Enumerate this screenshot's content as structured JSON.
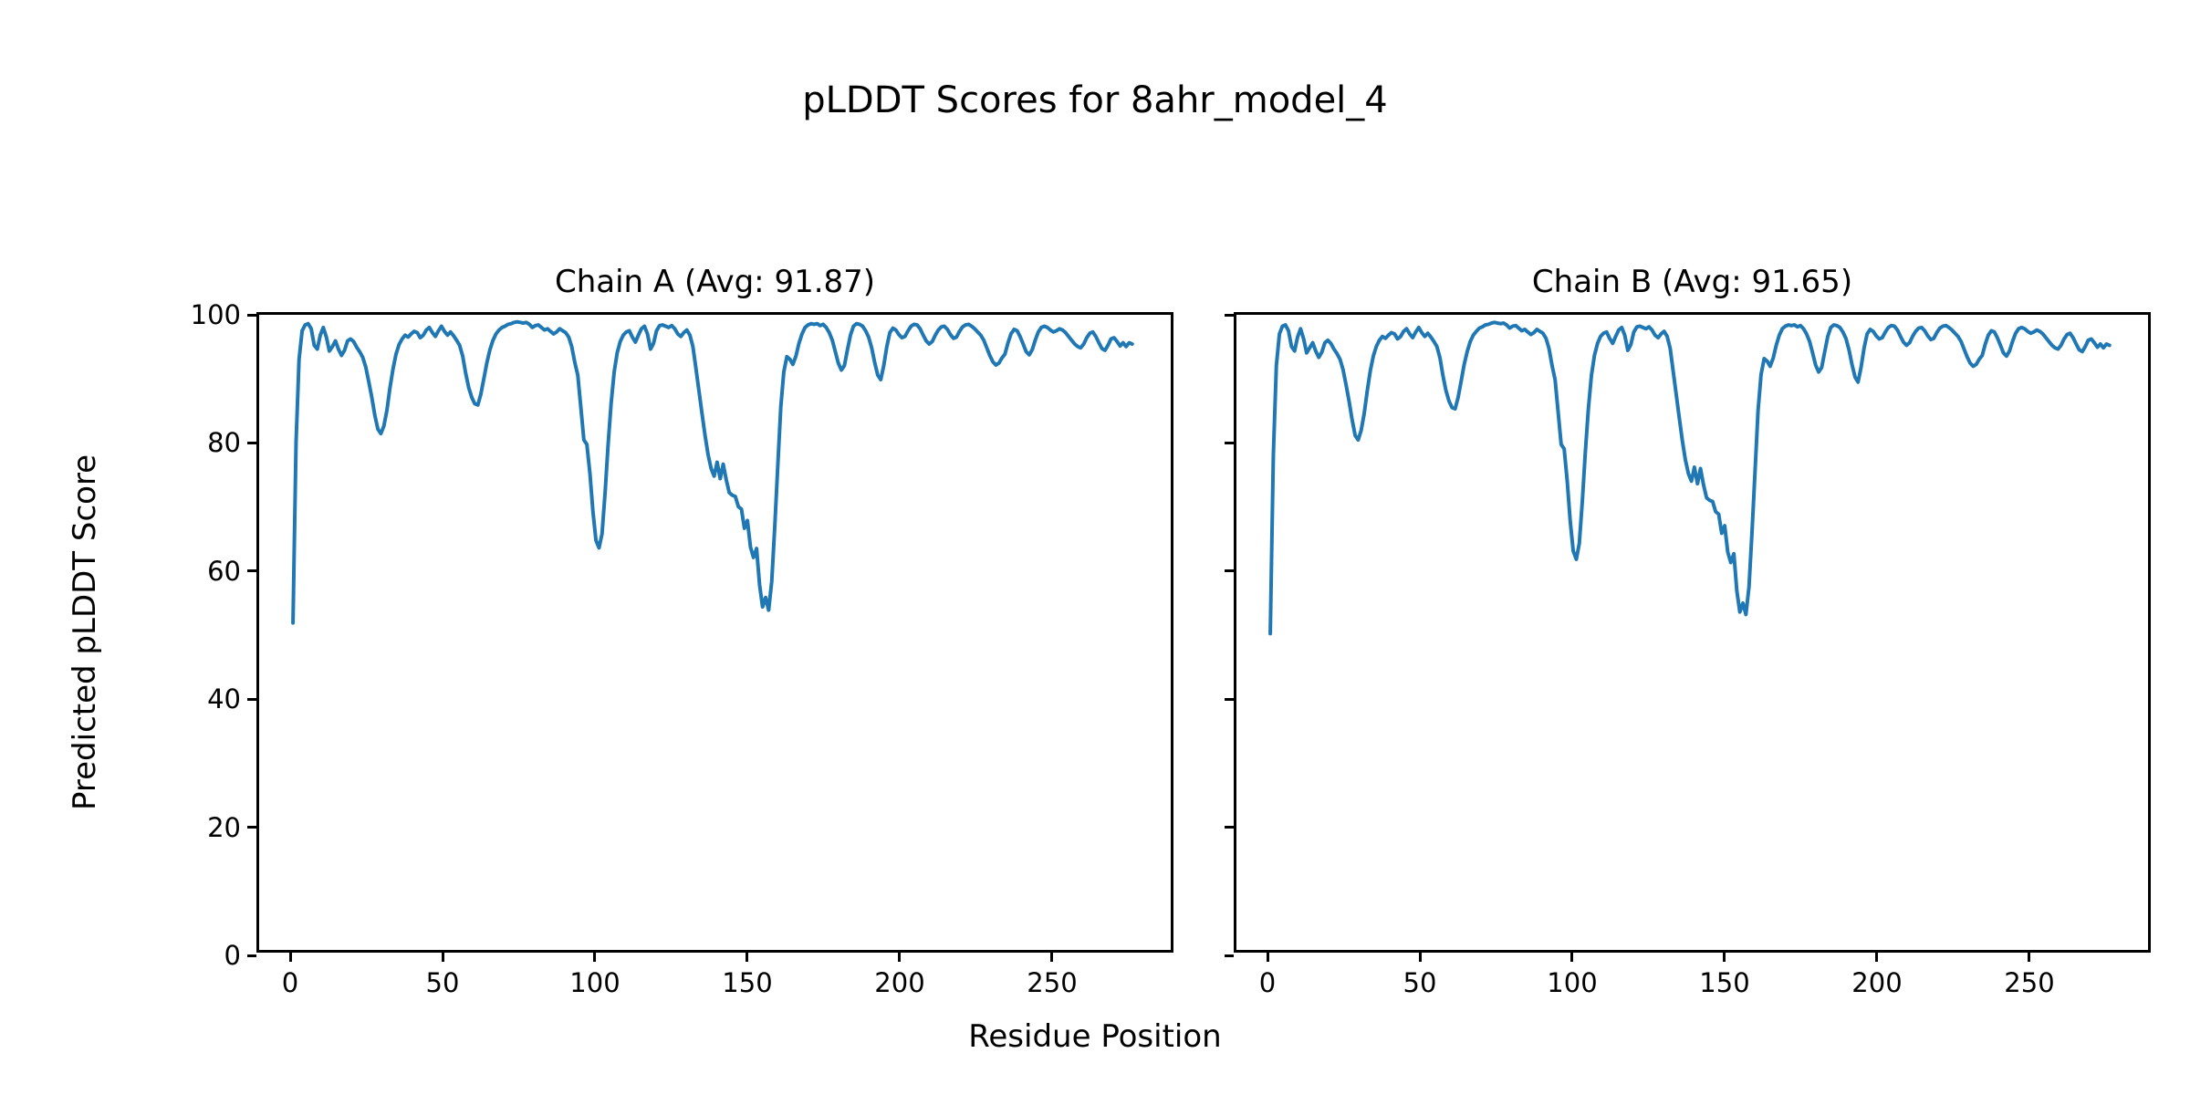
{
  "figure": {
    "suptitle": "pLDDT Scores for 8ahr_model_4",
    "xlabel": "Residue Position",
    "ylabel": "Predicted pLDDT Score"
  },
  "chart_data": {
    "type": "line",
    "title": "pLDDT Scores for 8ahr_model_4",
    "xlabel": "Residue Position",
    "ylabel": "Predicted pLDDT Score",
    "line_color": "#1f77b4",
    "background_color": "#ffffff",
    "grid": false,
    "legend": "none",
    "x_start": 1,
    "xlim": [
      -10.18,
      290.72
    ],
    "ylim": [
      0,
      100
    ],
    "x_ticks": [
      0,
      50,
      100,
      150,
      200,
      250
    ],
    "y_ticks": [
      0,
      20,
      40,
      60,
      80,
      100
    ],
    "subplots": [
      {
        "title": "Chain A (Avg: 91.87)",
        "chain": "A",
        "avg": 91.87,
        "values": [
          51.5,
          80.0,
          93.0,
          97.5,
          98.4,
          98.6,
          97.8,
          95.2,
          94.6,
          96.8,
          98.0,
          96.5,
          94.3,
          95.0,
          95.9,
          94.6,
          93.6,
          94.4,
          95.9,
          96.2,
          95.8,
          94.9,
          94.2,
          93.3,
          91.8,
          89.5,
          87.0,
          84.2,
          82.0,
          81.3,
          82.5,
          85.0,
          88.5,
          91.5,
          93.8,
          95.3,
          96.2,
          96.8,
          96.5,
          97.0,
          97.4,
          97.2,
          96.4,
          96.8,
          97.6,
          98.0,
          97.2,
          96.6,
          97.5,
          98.2,
          97.4,
          96.8,
          97.3,
          96.7,
          96.0,
          95.2,
          93.5,
          90.8,
          88.5,
          87.0,
          86.0,
          85.8,
          87.5,
          90.0,
          92.5,
          94.5,
          96.0,
          97.0,
          97.6,
          98.0,
          98.2,
          98.5,
          98.6,
          98.8,
          98.9,
          98.8,
          98.7,
          98.8,
          98.5,
          98.0,
          98.3,
          98.4,
          98.0,
          97.6,
          97.8,
          97.4,
          97.0,
          97.3,
          97.8,
          97.5,
          97.2,
          96.5,
          95.0,
          92.5,
          90.5,
          85.5,
          80.3,
          79.6,
          75.0,
          69.0,
          64.5,
          63.3,
          65.5,
          72.0,
          79.5,
          86.0,
          91.0,
          94.0,
          95.8,
          96.8,
          97.3,
          97.5,
          96.5,
          95.7,
          96.8,
          97.8,
          98.2,
          97.0,
          94.6,
          95.5,
          97.5,
          98.3,
          98.4,
          98.2,
          98.0,
          98.3,
          97.8,
          97.0,
          96.6,
          97.2,
          97.6,
          96.8,
          95.0,
          91.5,
          88.0,
          84.5,
          81.0,
          78.0,
          75.8,
          74.6,
          76.8,
          74.2,
          76.5,
          74.0,
          72.0,
          71.6,
          71.4,
          69.8,
          69.4,
          66.4,
          67.6,
          63.4,
          61.8,
          63.2,
          57.5,
          54.0,
          55.5,
          53.5,
          58.0,
          66.5,
          76.0,
          85.5,
          91.0,
          93.4,
          93.0,
          92.2,
          93.5,
          95.5,
          97.0,
          98.0,
          98.4,
          98.6,
          98.5,
          98.6,
          98.3,
          98.5,
          98.0,
          97.2,
          96.0,
          94.2,
          92.4,
          91.3,
          92.0,
          94.5,
          96.8,
          98.2,
          98.6,
          98.5,
          98.2,
          97.5,
          96.5,
          94.8,
          92.5,
          90.5,
          89.8,
          92.0,
          95.0,
          97.2,
          97.9,
          97.6,
          96.9,
          96.4,
          96.6,
          97.5,
          98.2,
          98.5,
          98.4,
          97.8,
          96.8,
          95.9,
          95.4,
          95.8,
          96.8,
          97.6,
          98.1,
          98.2,
          97.7,
          96.9,
          96.3,
          96.5,
          97.4,
          98.1,
          98.4,
          98.5,
          98.2,
          97.8,
          97.3,
          96.8,
          96.0,
          94.8,
          93.6,
          92.6,
          92.1,
          92.4,
          93.2,
          93.8,
          95.6,
          97.0,
          97.7,
          97.5,
          96.6,
          95.4,
          94.2,
          93.7,
          94.5,
          96.0,
          97.3,
          98.0,
          98.2,
          98.0,
          97.6,
          97.3,
          97.5,
          97.8,
          97.6,
          97.2,
          96.6,
          96.0,
          95.4,
          95.0,
          94.8,
          95.4,
          96.4,
          97.1,
          97.3,
          96.6,
          95.6,
          94.7,
          94.4,
          95.2,
          96.2,
          96.4,
          95.8,
          95.1,
          95.6,
          95.0,
          95.6,
          95.4
        ]
      },
      {
        "title": "Chain B (Avg: 91.65)",
        "chain": "B",
        "avg": 91.65,
        "values": [
          49.8,
          78.0,
          92.0,
          97.0,
          98.2,
          98.4,
          97.5,
          95.0,
          94.3,
          96.5,
          97.8,
          96.2,
          94.0,
          94.8,
          95.6,
          94.3,
          93.3,
          94.1,
          95.6,
          96.0,
          95.5,
          94.6,
          93.9,
          93.0,
          91.4,
          89.0,
          86.4,
          83.5,
          81.0,
          80.3,
          81.8,
          84.5,
          88.0,
          91.2,
          93.5,
          95.0,
          96.0,
          96.6,
          96.3,
          96.8,
          97.2,
          97.0,
          96.2,
          96.6,
          97.4,
          97.8,
          97.0,
          96.4,
          97.3,
          98.0,
          97.2,
          96.6,
          97.1,
          96.5,
          95.8,
          95.0,
          93.2,
          90.4,
          88.0,
          86.4,
          85.4,
          85.2,
          87.0,
          89.6,
          92.2,
          94.2,
          95.8,
          96.8,
          97.4,
          97.9,
          98.1,
          98.4,
          98.5,
          98.7,
          98.8,
          98.7,
          98.6,
          98.7,
          98.4,
          97.9,
          98.2,
          98.3,
          97.9,
          97.5,
          97.7,
          97.3,
          96.9,
          97.2,
          97.7,
          97.4,
          97.1,
          96.3,
          94.7,
          92.0,
          89.8,
          84.8,
          79.6,
          78.9,
          73.8,
          67.5,
          62.8,
          61.5,
          64.0,
          70.8,
          78.5,
          85.2,
          90.5,
          93.6,
          95.5,
          96.6,
          97.1,
          97.3,
          96.3,
          95.5,
          96.6,
          97.6,
          98.0,
          96.8,
          94.4,
          95.3,
          97.3,
          98.1,
          98.2,
          98.0,
          97.8,
          98.1,
          97.6,
          96.8,
          96.4,
          97.0,
          97.4,
          96.6,
          94.7,
          91.0,
          87.4,
          83.8,
          80.2,
          77.2,
          75.0,
          73.8,
          76.0,
          73.4,
          75.8,
          73.2,
          71.2,
          70.8,
          70.6,
          69.0,
          68.6,
          65.6,
          66.8,
          62.6,
          61.0,
          62.4,
          56.5,
          53.2,
          54.6,
          52.8,
          57.2,
          65.8,
          75.2,
          85.0,
          90.6,
          93.1,
          92.7,
          91.9,
          93.2,
          95.2,
          96.8,
          97.8,
          98.2,
          98.4,
          98.3,
          98.4,
          98.1,
          98.3,
          97.8,
          97.0,
          95.8,
          94.0,
          92.1,
          91.0,
          91.7,
          94.2,
          96.6,
          98.0,
          98.4,
          98.3,
          98.0,
          97.3,
          96.3,
          94.5,
          92.2,
          90.2,
          89.4,
          91.7,
          94.8,
          97.0,
          97.7,
          97.4,
          96.7,
          96.2,
          96.4,
          97.3,
          98.0,
          98.3,
          98.2,
          97.6,
          96.6,
          95.7,
          95.2,
          95.6,
          96.6,
          97.4,
          97.9,
          98.0,
          97.5,
          96.7,
          96.1,
          96.3,
          97.2,
          97.9,
          98.2,
          98.3,
          98.0,
          97.6,
          97.1,
          96.6,
          95.8,
          94.6,
          93.4,
          92.4,
          91.9,
          92.2,
          93.0,
          93.6,
          95.4,
          96.8,
          97.5,
          97.3,
          96.4,
          95.2,
          94.0,
          93.5,
          94.3,
          95.8,
          97.1,
          97.8,
          98.0,
          97.8,
          97.4,
          97.1,
          97.3,
          97.6,
          97.4,
          97.0,
          96.4,
          95.8,
          95.2,
          94.8,
          94.6,
          95.2,
          96.2,
          96.9,
          97.1,
          96.4,
          95.4,
          94.5,
          94.2,
          95.0,
          96.0,
          96.2,
          95.6,
          94.9,
          95.4,
          94.8,
          95.4,
          95.2
        ]
      }
    ]
  }
}
